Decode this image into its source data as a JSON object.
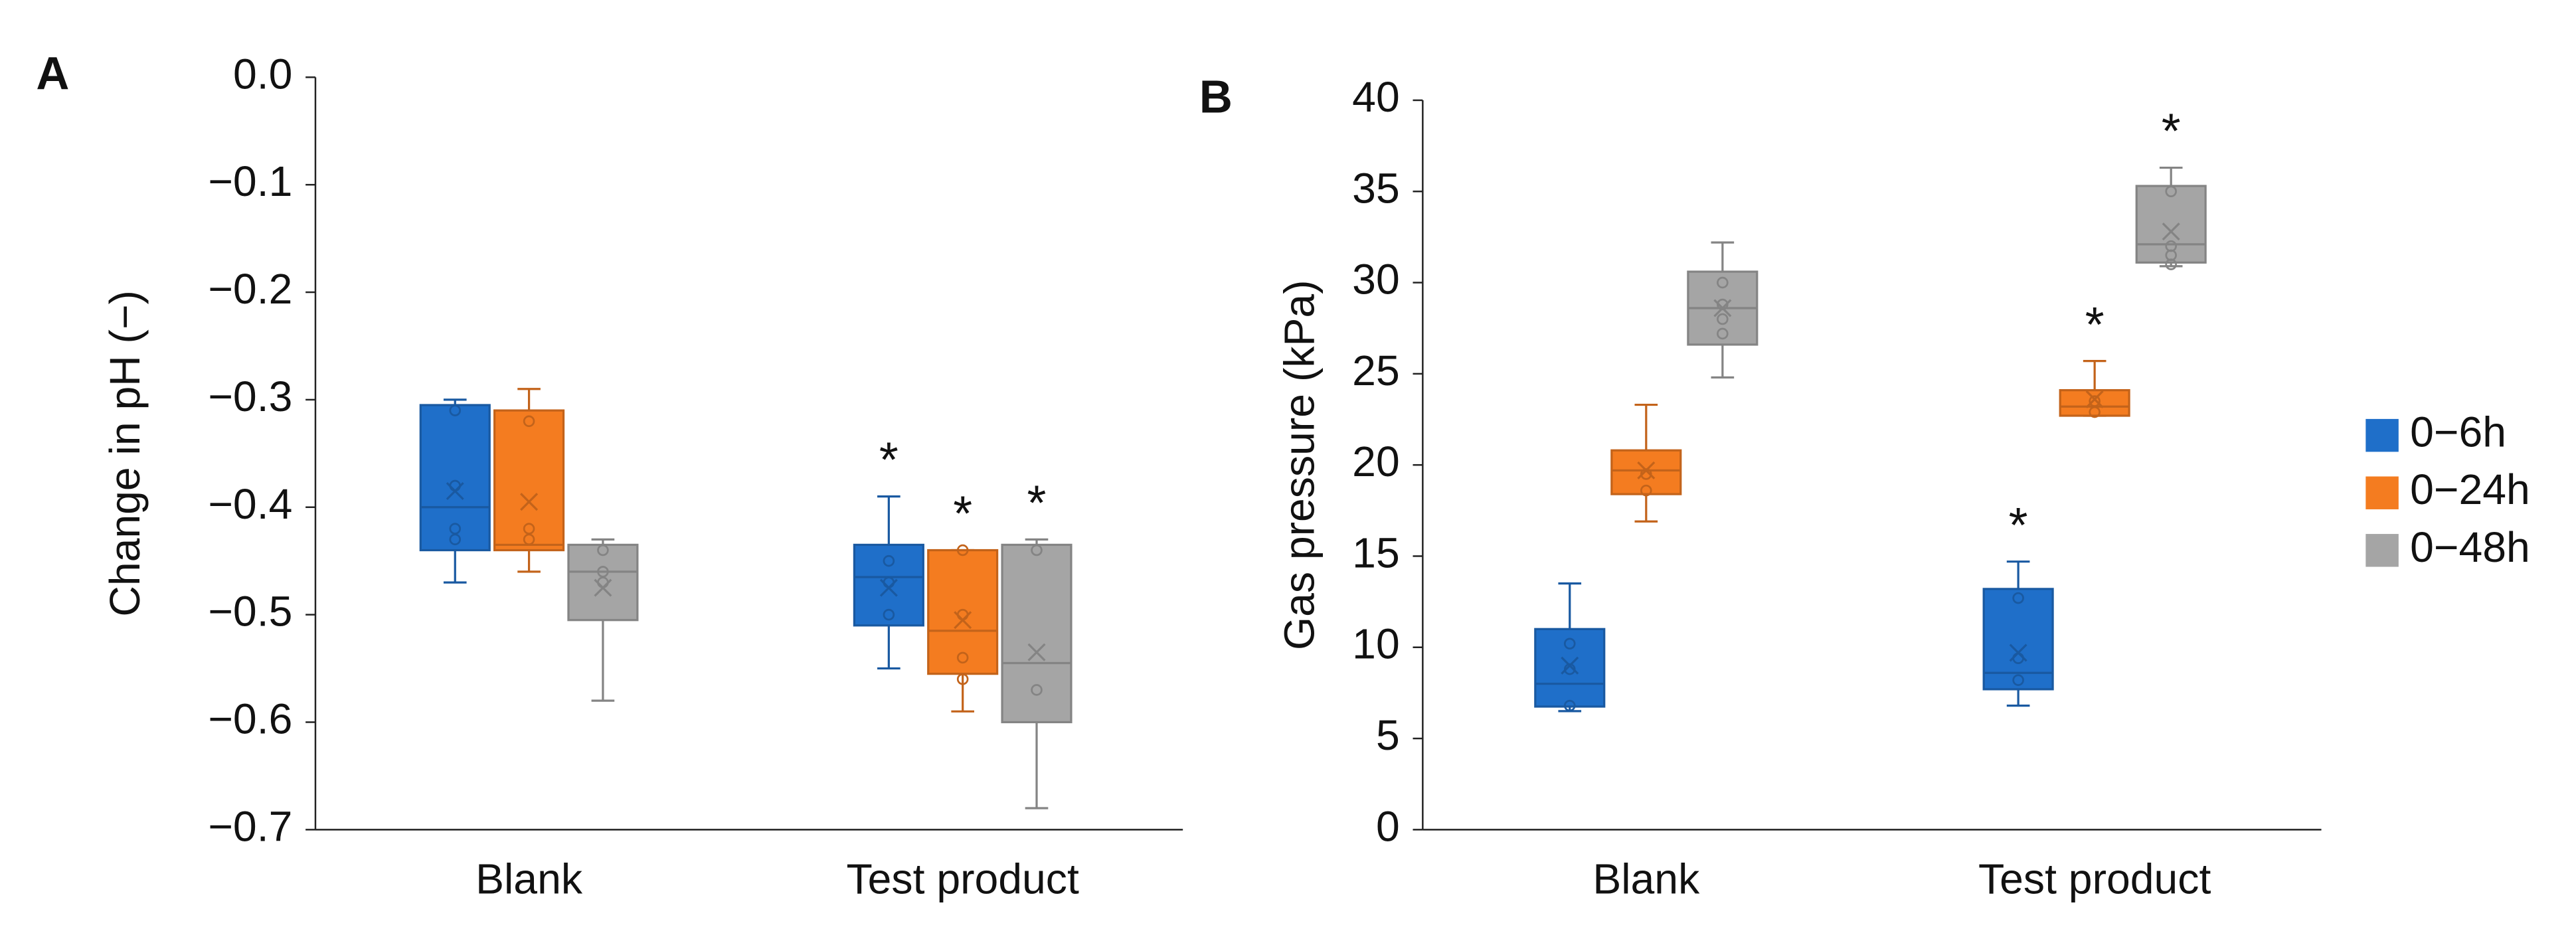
{
  "chart_data": [
    {
      "type": "box",
      "panel": "A",
      "ylabel": "Change in pH (−)",
      "categories": [
        "Blank",
        "Test product"
      ],
      "ylim": [
        -0.7,
        0.0
      ],
      "yticks": [
        {
          "value": 0.0,
          "label": "0.0"
        },
        {
          "value": -0.1,
          "label": "−0.1"
        },
        {
          "value": -0.2,
          "label": "−0.2"
        },
        {
          "value": -0.3,
          "label": "−0.3"
        },
        {
          "value": -0.4,
          "label": "−0.4"
        },
        {
          "value": -0.5,
          "label": "−0.5"
        },
        {
          "value": -0.6,
          "label": "−0.6"
        },
        {
          "value": -0.7,
          "label": "−0.7"
        }
      ],
      "series": [
        {
          "color": "#1f6fc9",
          "annotations": [
            null,
            "*"
          ],
          "boxes": [
            {
              "min": -0.47,
              "q1": -0.44,
              "median": -0.4,
              "q3": -0.305,
              "max": -0.3,
              "mean": -0.385,
              "points": [
                -0.31,
                -0.38,
                -0.42,
                -0.43
              ]
            },
            {
              "min": -0.55,
              "q1": -0.51,
              "median": -0.465,
              "q3": -0.435,
              "max": -0.39,
              "mean": -0.475,
              "points": [
                -0.45,
                -0.47,
                -0.5
              ]
            }
          ]
        },
        {
          "color": "#f47c20",
          "annotations": [
            null,
            "*"
          ],
          "boxes": [
            {
              "min": -0.46,
              "q1": -0.44,
              "median": -0.435,
              "q3": -0.31,
              "max": -0.29,
              "mean": -0.395,
              "points": [
                -0.32,
                -0.42,
                -0.43
              ]
            },
            {
              "min": -0.59,
              "q1": -0.555,
              "median": -0.515,
              "q3": -0.44,
              "max": -0.44,
              "mean": -0.505,
              "points": [
                -0.44,
                -0.5,
                -0.54,
                -0.56
              ]
            }
          ]
        },
        {
          "color": "#a5a5a5",
          "annotations": [
            null,
            "*"
          ],
          "boxes": [
            {
              "min": -0.58,
              "q1": -0.505,
              "median": -0.46,
              "q3": -0.435,
              "max": -0.43,
              "mean": -0.475,
              "points": [
                -0.44,
                -0.46,
                -0.47
              ]
            },
            {
              "min": -0.68,
              "q1": -0.6,
              "median": -0.545,
              "q3": -0.435,
              "max": -0.43,
              "mean": -0.535,
              "points": [
                -0.44,
                -0.57
              ]
            }
          ]
        }
      ]
    },
    {
      "type": "box",
      "panel": "B",
      "ylabel": "Gas pressure (kPa)",
      "categories": [
        "Blank",
        "Test product"
      ],
      "ylim": [
        0,
        40
      ],
      "yticks": [
        0,
        5,
        10,
        15,
        20,
        25,
        30,
        35,
        40
      ],
      "legend": "right",
      "series": [
        {
          "name": "0−6h",
          "color": "#1f6fc9",
          "annotations": [
            null,
            "*"
          ],
          "boxes": [
            {
              "min": 6.5,
              "q1": 6.75,
              "median": 8.0,
              "q3": 11.0,
              "max": 13.5,
              "mean": 9.0,
              "points": [
                10.2,
                8.8,
                6.8
              ]
            },
            {
              "min": 6.8,
              "q1": 7.7,
              "median": 8.6,
              "q3": 13.2,
              "max": 14.7,
              "mean": 9.7,
              "points": [
                12.7,
                9.4,
                8.2
              ]
            }
          ]
        },
        {
          "name": "0−24h",
          "color": "#f47c20",
          "annotations": [
            null,
            "*"
          ],
          "boxes": [
            {
              "min": 16.9,
              "q1": 18.4,
              "median": 19.7,
              "q3": 20.8,
              "max": 23.3,
              "mean": 19.7,
              "points": [
                19.5,
                18.6
              ]
            },
            {
              "min": 22.7,
              "q1": 22.7,
              "median": 23.2,
              "q3": 24.1,
              "max": 25.7,
              "mean": 23.6,
              "points": [
                23.5,
                22.9
              ]
            }
          ]
        },
        {
          "name": "0−48h",
          "color": "#a5a5a5",
          "annotations": [
            null,
            "*"
          ],
          "boxes": [
            {
              "min": 24.8,
              "q1": 26.6,
              "median": 28.6,
              "q3": 30.6,
              "max": 32.2,
              "mean": 28.6,
              "points": [
                30.0,
                28.8,
                28.0,
                27.2
              ]
            },
            {
              "min": 30.9,
              "q1": 31.1,
              "median": 32.1,
              "q3": 35.3,
              "max": 36.3,
              "mean": 32.8,
              "points": [
                35.0,
                32.0,
                31.5,
                31.0
              ]
            }
          ]
        }
      ]
    }
  ]
}
